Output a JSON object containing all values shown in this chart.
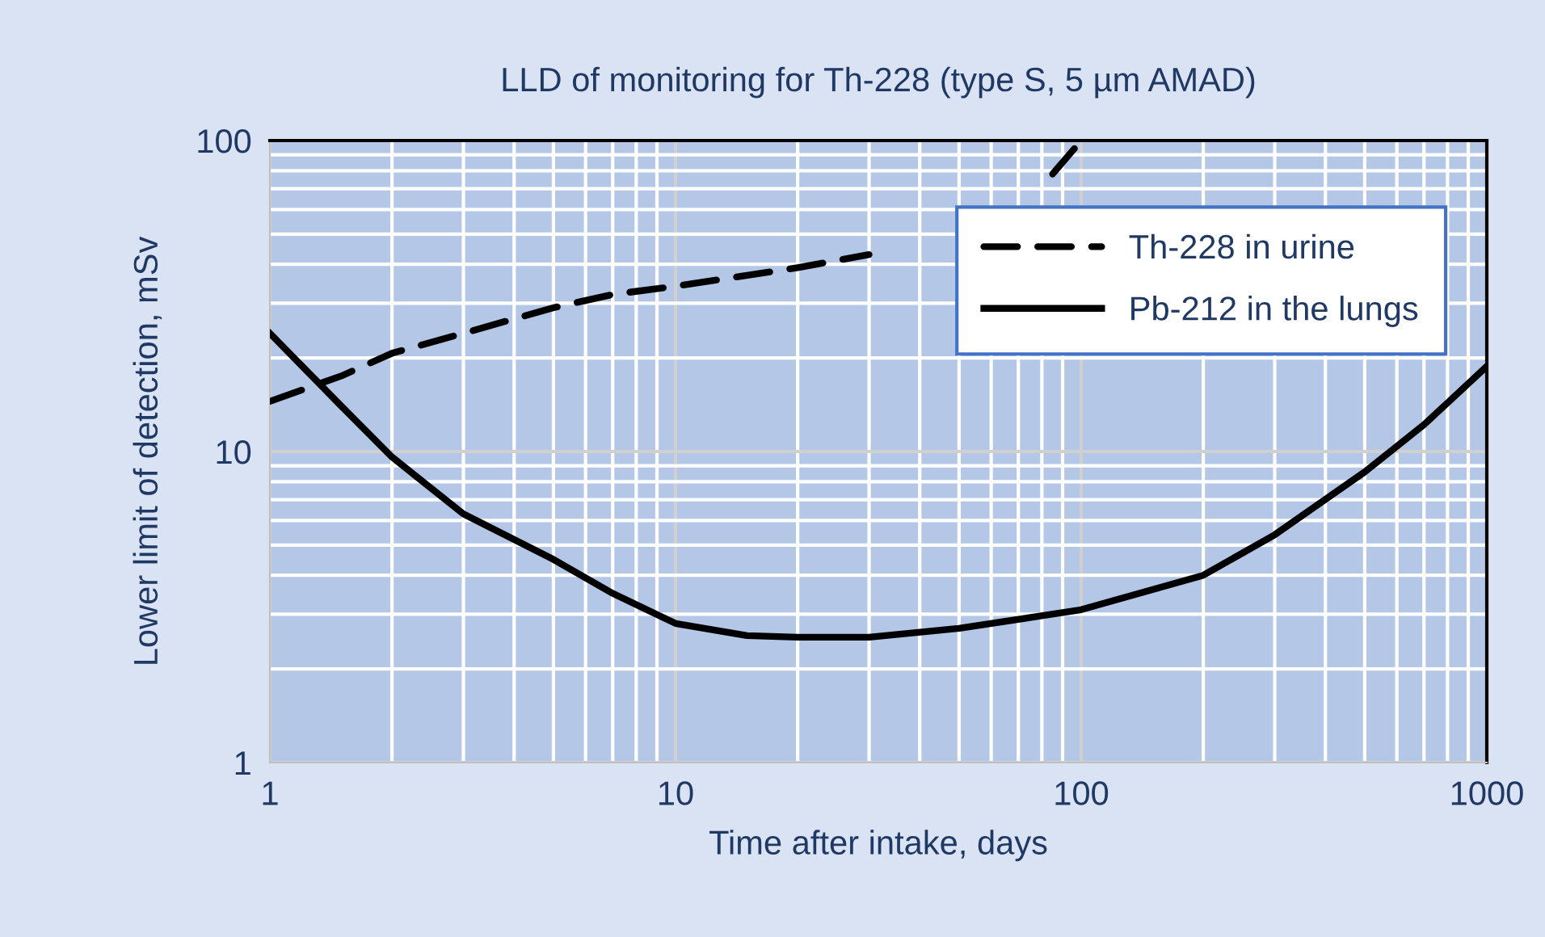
{
  "chart_data": {
    "type": "line",
    "title": "LLD of monitoring for Th-228 (type S, 5 µm AMAD)",
    "xlabel": "Time after intake, days",
    "ylabel": "Lower limit of detection, mSv",
    "log": "xy",
    "xlim": [
      1,
      1000
    ],
    "ylim": [
      1,
      100
    ],
    "xticks": [
      1,
      10,
      100,
      1000
    ],
    "yticks": [
      1,
      10,
      100
    ],
    "grid": true,
    "legend": "top right",
    "series": [
      {
        "name": "Th-228 in urine",
        "color": "#000000",
        "line_style": "dashed",
        "x": [
          1,
          1.5,
          2,
          3,
          5,
          7,
          10,
          20,
          30,
          50,
          70,
          85,
          100
        ],
        "values": [
          14.5,
          17.5,
          20.7,
          24,
          29,
          32,
          34,
          39,
          43,
          null,
          null,
          78,
          100
        ]
      },
      {
        "name": "Pb-212 in the lungs",
        "color": "#000000",
        "line_style": "solid",
        "x": [
          1,
          1.5,
          2,
          3,
          5,
          7,
          10,
          15,
          20,
          30,
          50,
          100,
          200,
          300,
          500,
          700,
          1000
        ],
        "values": [
          24,
          14,
          9.6,
          6.3,
          4.5,
          3.5,
          2.8,
          2.56,
          2.53,
          2.53,
          2.7,
          3.1,
          4.0,
          5.4,
          8.6,
          12.2,
          18.8
        ]
      }
    ]
  }
}
